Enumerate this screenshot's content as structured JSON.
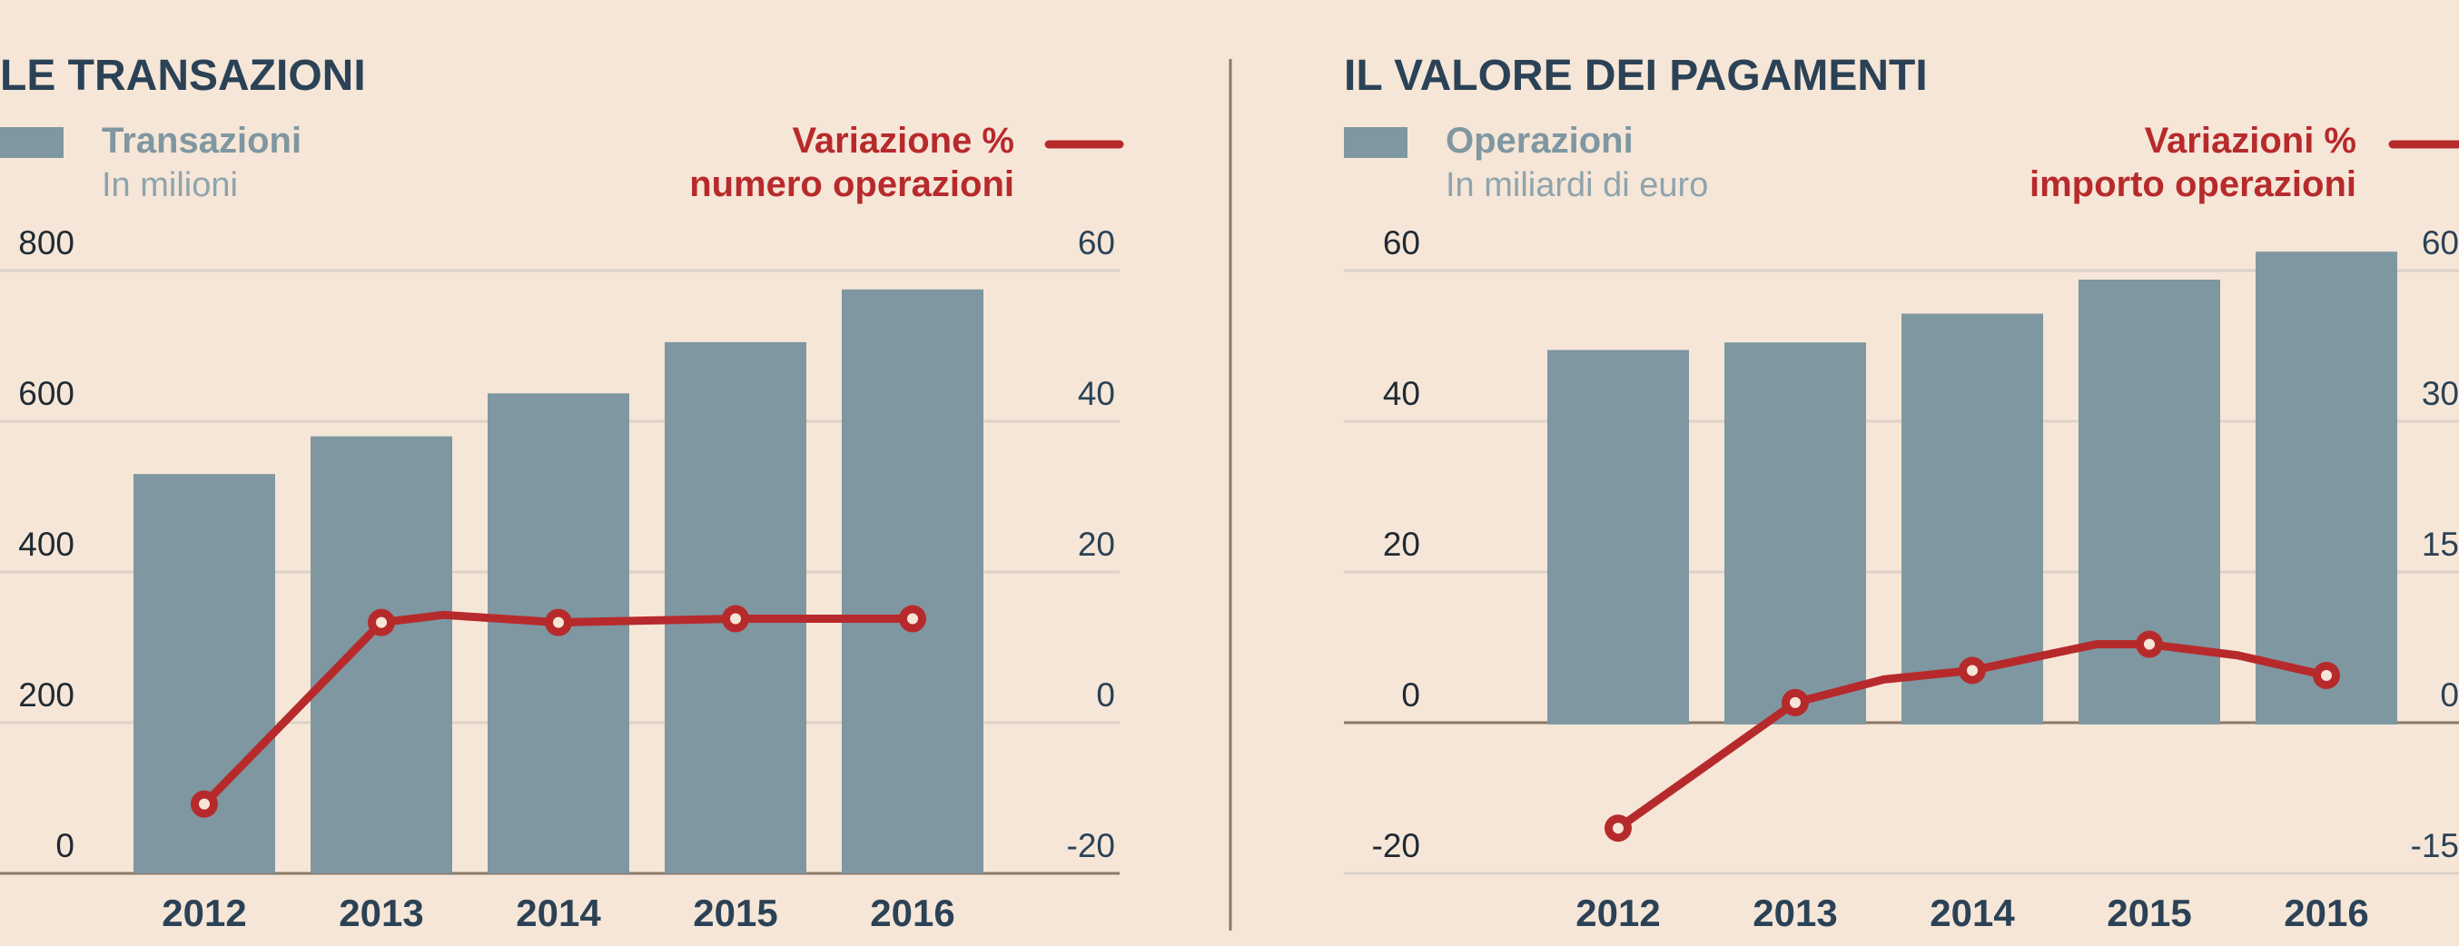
{
  "colors": {
    "background": "#f6e6d7",
    "bar": "#7f97a1",
    "line": "#b72a2c",
    "grid": "#dcd2c8",
    "axis": "#8a7968",
    "title": "#2b4256",
    "divider": "#8a7968"
  },
  "chart_data": [
    {
      "type": "bar",
      "title": "LE TRANSAZIONI",
      "bar_legend": {
        "label": "Transazioni",
        "unit": "In milioni"
      },
      "line_legend": {
        "label_line1": "Variazione %",
        "label_line2": "numero operazioni"
      },
      "categories": [
        "2012",
        "2013",
        "2014",
        "2015",
        "2016"
      ],
      "y_left": {
        "ticks": [
          "800",
          "600",
          "400",
          "200",
          "0"
        ],
        "ylim": [
          0,
          800
        ]
      },
      "y_right": {
        "ticks": [
          "60",
          "40",
          "20",
          "0",
          "-20"
        ],
        "ylim": [
          -20,
          60
        ]
      },
      "series": [
        {
          "name": "Transazioni",
          "type": "bar",
          "axis": "left",
          "values": [
            530,
            580,
            637,
            705,
            775
          ]
        },
        {
          "name": "Variazione % numero operazioni",
          "type": "line",
          "axis": "right",
          "points": [
            {
              "x": 0,
              "y": -10.8,
              "marker": true
            },
            {
              "x": 1,
              "y": 13.3,
              "marker": true
            },
            {
              "x": 1.35,
              "y": 14.3,
              "marker": false
            },
            {
              "x": 2,
              "y": 13.3,
              "marker": true
            },
            {
              "x": 3,
              "y": 13.8,
              "marker": true
            },
            {
              "x": 4,
              "y": 13.8,
              "marker": true
            }
          ]
        }
      ]
    },
    {
      "type": "bar",
      "title": "IL VALORE DEI PAGAMENTI",
      "bar_legend": {
        "label": "Operazioni",
        "unit": "In miliardi di euro"
      },
      "line_legend": {
        "label_line1": "Variazioni %",
        "label_line2": "importo operazioni"
      },
      "categories": [
        "2012",
        "2013",
        "2014",
        "2015",
        "2016"
      ],
      "y_left": {
        "ticks": [
          "60",
          "40",
          "20",
          "0",
          "-20"
        ],
        "ylim": [
          -20,
          60
        ]
      },
      "y_right": {
        "ticks": [
          "60",
          "30",
          "15",
          "0",
          "-15"
        ],
        "ylim": [
          -15,
          60
        ]
      },
      "series": [
        {
          "name": "Operazioni",
          "type": "bar",
          "axis": "left",
          "values": [
            49.5,
            50.5,
            54.3,
            58.8,
            62.5
          ]
        },
        {
          "name": "Variazioni % importo operazioni",
          "type": "line",
          "axis": "right",
          "points": [
            {
              "x": 0,
              "y": -10.5,
              "marker": true
            },
            {
              "x": 1,
              "y": 2.0,
              "marker": true
            },
            {
              "x": 1.5,
              "y": 4.3,
              "marker": false
            },
            {
              "x": 2,
              "y": 5.2,
              "marker": true
            },
            {
              "x": 2.7,
              "y": 7.8,
              "marker": false
            },
            {
              "x": 3,
              "y": 7.8,
              "marker": true
            },
            {
              "x": 3.5,
              "y": 6.7,
              "marker": false
            },
            {
              "x": 4,
              "y": 4.7,
              "marker": true
            }
          ]
        }
      ]
    }
  ]
}
